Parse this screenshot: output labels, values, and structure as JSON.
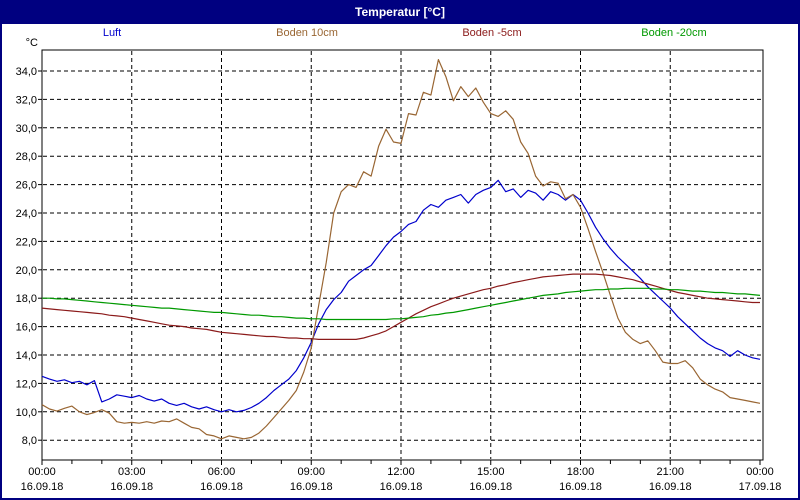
{
  "window": {
    "title": "Temperatur [°C]"
  },
  "colors": {
    "frame": "#000080",
    "titlebar_bg": "#000080",
    "titlebar_text": "#ffffff",
    "grid": "#000000",
    "axis": "#000000",
    "plot_bg": "#ffffff"
  },
  "legend": [
    {
      "label": "Luft",
      "color": "#0000CC"
    },
    {
      "label": "Boden 10cm",
      "color": "#996633"
    },
    {
      "label": "Boden -5cm",
      "color": "#8B1A1A"
    },
    {
      "label": "Boden -20cm",
      "color": "#009900"
    }
  ],
  "chart_data": {
    "type": "line",
    "title": "Temperatur [°C]",
    "y_axis": {
      "unit_label": "°C",
      "ylim": [
        6.6,
        35.5
      ],
      "ticks": [
        {
          "value": 34,
          "label": "34,0"
        },
        {
          "value": 32,
          "label": "32,0"
        },
        {
          "value": 30,
          "label": "30,0"
        },
        {
          "value": 28,
          "label": "28,0"
        },
        {
          "value": 26,
          "label": "26,0"
        },
        {
          "value": 24,
          "label": "24,0"
        },
        {
          "value": 22,
          "label": "22,0"
        },
        {
          "value": 20,
          "label": "20,0"
        },
        {
          "value": 18,
          "label": "18,0"
        },
        {
          "value": 16,
          "label": "16,0"
        },
        {
          "value": 14,
          "label": "14,0"
        },
        {
          "value": 12,
          "label": "12,0"
        },
        {
          "value": 10,
          "label": "10,0"
        },
        {
          "value": 8,
          "label": "8,0"
        }
      ],
      "grid": "dashed"
    },
    "x_axis": {
      "xlim_hours": [
        0,
        24
      ],
      "minor_tick_every_hours": 1,
      "ticks": [
        {
          "hour": 0,
          "time": "00:00",
          "date": "16.09.18"
        },
        {
          "hour": 3,
          "time": "03:00",
          "date": "16.09.18"
        },
        {
          "hour": 6,
          "time": "06:00",
          "date": "16.09.18"
        },
        {
          "hour": 9,
          "time": "09:00",
          "date": "16.09.18"
        },
        {
          "hour": 12,
          "time": "12:00",
          "date": "16.09.18"
        },
        {
          "hour": 15,
          "time": "15:00",
          "date": "16.09.18"
        },
        {
          "hour": 18,
          "time": "18:00",
          "date": "16.09.18"
        },
        {
          "hour": 21,
          "time": "21:00",
          "date": "16.09.18"
        },
        {
          "hour": 24,
          "time": "00:00",
          "date": "17.09.18"
        }
      ],
      "grid": "dashed"
    },
    "sampling": {
      "x_start_hours": 0,
      "x_step_hours": 0.25
    },
    "series": [
      {
        "name": "Luft",
        "color": "#0000CC",
        "values": [
          12.5,
          12.3,
          12.15,
          12.25,
          12.05,
          12.15,
          11.9,
          12.2,
          10.7,
          10.9,
          11.2,
          11.1,
          11.0,
          11.15,
          10.9,
          10.75,
          10.9,
          10.6,
          10.45,
          10.6,
          10.35,
          10.2,
          10.35,
          10.15,
          10.0,
          10.15,
          10.0,
          10.1,
          10.3,
          10.6,
          11.0,
          11.5,
          11.9,
          12.3,
          12.9,
          13.8,
          14.9,
          16.2,
          17.2,
          17.9,
          18.4,
          19.2,
          19.6,
          20.0,
          20.3,
          21.0,
          21.7,
          22.3,
          22.7,
          23.2,
          23.4,
          24.2,
          24.6,
          24.4,
          24.9,
          25.1,
          25.3,
          24.7,
          25.3,
          25.6,
          25.8,
          26.3,
          25.5,
          25.7,
          25.1,
          25.6,
          25.4,
          24.9,
          25.5,
          25.3,
          24.9,
          25.3,
          24.9,
          24.0,
          23.0,
          22.2,
          21.5,
          20.9,
          20.4,
          19.9,
          19.4,
          18.8,
          18.3,
          17.8,
          17.3,
          16.7,
          16.2,
          15.7,
          15.2,
          14.8,
          14.5,
          14.3,
          13.9,
          14.3,
          14.0,
          13.8,
          13.7
        ]
      },
      {
        "name": "Boden 10cm",
        "color": "#996633",
        "values": [
          10.5,
          10.2,
          10.05,
          10.25,
          10.4,
          10.0,
          9.8,
          9.95,
          10.15,
          9.9,
          9.3,
          9.2,
          9.25,
          9.2,
          9.3,
          9.2,
          9.35,
          9.3,
          9.5,
          9.2,
          8.9,
          8.8,
          8.4,
          8.3,
          8.1,
          8.3,
          8.2,
          8.1,
          8.2,
          8.5,
          9.0,
          9.6,
          10.2,
          10.8,
          11.5,
          12.8,
          14.5,
          17.5,
          20.5,
          24.0,
          25.5,
          26.0,
          25.8,
          26.9,
          26.6,
          28.7,
          29.9,
          29.0,
          28.9,
          31.0,
          30.9,
          32.5,
          32.3,
          34.8,
          33.6,
          31.9,
          32.9,
          32.2,
          32.8,
          31.8,
          31.0,
          30.8,
          31.2,
          30.6,
          29.0,
          28.2,
          26.6,
          25.9,
          26.2,
          26.1,
          25.0,
          25.3,
          24.4,
          22.9,
          21.3,
          19.8,
          18.2,
          16.6,
          15.6,
          15.1,
          14.8,
          15.0,
          14.3,
          13.5,
          13.4,
          13.4,
          13.6,
          13.1,
          12.3,
          11.9,
          11.6,
          11.4,
          11.0,
          10.9,
          10.8,
          10.7,
          10.6
        ]
      },
      {
        "name": "Boden -5cm",
        "color": "#8B1A1A",
        "values": [
          17.3,
          17.25,
          17.2,
          17.15,
          17.1,
          17.05,
          17.0,
          16.95,
          16.9,
          16.8,
          16.75,
          16.7,
          16.6,
          16.5,
          16.4,
          16.3,
          16.2,
          16.1,
          16.05,
          16.0,
          15.9,
          15.85,
          15.8,
          15.7,
          15.6,
          15.55,
          15.5,
          15.45,
          15.4,
          15.35,
          15.3,
          15.3,
          15.25,
          15.2,
          15.2,
          15.15,
          15.15,
          15.1,
          15.1,
          15.1,
          15.1,
          15.1,
          15.1,
          15.2,
          15.35,
          15.5,
          15.7,
          16.0,
          16.3,
          16.6,
          16.9,
          17.15,
          17.4,
          17.6,
          17.8,
          18.0,
          18.15,
          18.3,
          18.45,
          18.6,
          18.7,
          18.85,
          18.95,
          19.1,
          19.2,
          19.3,
          19.4,
          19.5,
          19.55,
          19.6,
          19.65,
          19.7,
          19.7,
          19.7,
          19.7,
          19.65,
          19.6,
          19.5,
          19.4,
          19.3,
          19.15,
          19.0,
          18.85,
          18.7,
          18.55,
          18.4,
          18.3,
          18.2,
          18.1,
          18.0,
          17.95,
          17.9,
          17.85,
          17.8,
          17.75,
          17.7,
          17.7
        ]
      },
      {
        "name": "Boden -20cm",
        "color": "#009900",
        "values": [
          18.0,
          18.0,
          17.95,
          17.95,
          17.9,
          17.85,
          17.8,
          17.75,
          17.7,
          17.65,
          17.6,
          17.55,
          17.5,
          17.45,
          17.4,
          17.35,
          17.3,
          17.3,
          17.25,
          17.2,
          17.15,
          17.1,
          17.05,
          17.0,
          17.0,
          16.95,
          16.9,
          16.85,
          16.8,
          16.8,
          16.75,
          16.7,
          16.7,
          16.65,
          16.6,
          16.6,
          16.55,
          16.55,
          16.5,
          16.5,
          16.5,
          16.5,
          16.5,
          16.5,
          16.5,
          16.5,
          16.5,
          16.55,
          16.55,
          16.6,
          16.65,
          16.7,
          16.8,
          16.85,
          16.95,
          17.0,
          17.1,
          17.2,
          17.3,
          17.4,
          17.5,
          17.6,
          17.7,
          17.8,
          17.9,
          18.0,
          18.1,
          18.2,
          18.25,
          18.3,
          18.4,
          18.45,
          18.5,
          18.55,
          18.6,
          18.6,
          18.65,
          18.65,
          18.7,
          18.7,
          18.7,
          18.7,
          18.65,
          18.65,
          18.6,
          18.6,
          18.55,
          18.5,
          18.5,
          18.45,
          18.4,
          18.4,
          18.35,
          18.3,
          18.3,
          18.25,
          18.2
        ]
      }
    ]
  }
}
